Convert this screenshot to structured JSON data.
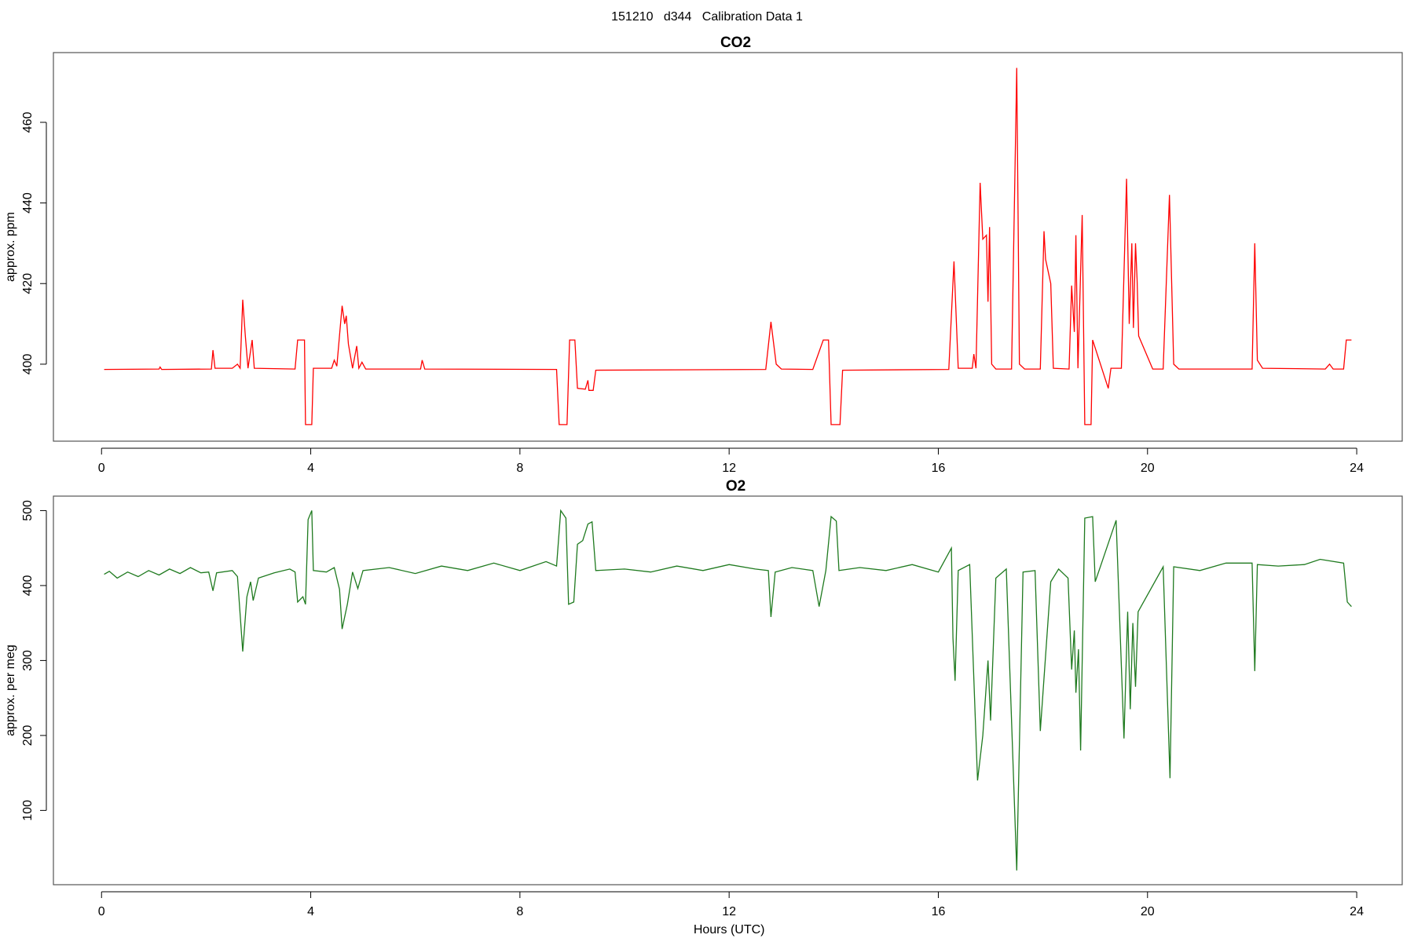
{
  "title": "151210   d344   Calibration Data 1",
  "chart_data": [
    {
      "type": "line",
      "title": "CO2",
      "ylabel": "approx. ppm",
      "color": "#ff0000",
      "xlim": [
        -0.92,
        24.87
      ],
      "ylim": [
        380.9,
        477.3
      ],
      "xticks": [
        0,
        4,
        8,
        12,
        16,
        20,
        24
      ],
      "yticks": [
        400,
        420,
        440,
        460
      ],
      "x": [
        0.05,
        1.1,
        1.12,
        1.15,
        2.1,
        2.13,
        2.17,
        2.5,
        2.6,
        2.65,
        2.7,
        2.75,
        2.8,
        2.88,
        2.92,
        3.7,
        3.75,
        3.88,
        3.9,
        4.02,
        4.05,
        4.4,
        4.45,
        4.5,
        4.6,
        4.65,
        4.68,
        4.72,
        4.8,
        4.88,
        4.92,
        4.98,
        5.05,
        6.1,
        6.13,
        6.18,
        8.7,
        8.75,
        8.9,
        8.95,
        9.05,
        9.1,
        9.25,
        9.3,
        9.32,
        9.4,
        9.45,
        12.7,
        12.8,
        12.9,
        13.0,
        13.6,
        13.8,
        13.9,
        13.95,
        14.12,
        14.17,
        16.2,
        16.3,
        16.38,
        16.65,
        16.68,
        16.72,
        16.8,
        16.85,
        16.92,
        16.95,
        16.98,
        17.02,
        17.1,
        17.4,
        17.5,
        17.55,
        17.65,
        17.95,
        18.02,
        18.05,
        18.15,
        18.2,
        18.5,
        18.55,
        18.6,
        18.63,
        18.67,
        18.75,
        18.8,
        18.92,
        18.95,
        19.25,
        19.3,
        19.5,
        19.6,
        19.65,
        19.7,
        19.73,
        19.77,
        19.8,
        19.83,
        20.1,
        20.3,
        20.42,
        20.5,
        20.6,
        22.0,
        22.05,
        22.1,
        22.2,
        23.4,
        23.48,
        23.55,
        23.75,
        23.8,
        23.9
      ],
      "values": [
        398.7,
        398.8,
        399.3,
        398.7,
        398.8,
        403.5,
        399,
        399,
        400,
        399,
        416,
        407,
        399,
        406,
        399,
        398.8,
        406,
        406,
        385,
        385,
        399,
        399,
        401,
        399.5,
        414.5,
        410,
        412,
        405,
        399,
        404.5,
        399,
        400.5,
        398.8,
        398.8,
        401,
        398.8,
        398.7,
        385,
        385,
        406,
        406,
        394,
        393.8,
        396,
        393.5,
        393.5,
        398.5,
        398.7,
        410.5,
        400,
        398.8,
        398.7,
        406,
        406,
        385,
        385,
        398.5,
        398.7,
        425.5,
        399,
        399,
        402.5,
        399,
        445,
        431,
        432,
        415.5,
        434,
        400,
        398.8,
        398.8,
        473.5,
        400,
        398.8,
        398.8,
        433,
        426,
        420,
        399,
        398.8,
        419.5,
        408,
        432,
        399,
        437,
        385,
        385,
        406,
        394,
        399,
        399,
        446,
        410,
        430,
        409,
        430,
        421,
        407,
        398.8,
        398.8,
        442,
        400,
        398.8,
        398.8,
        430,
        401,
        399,
        398.8,
        400,
        398.8,
        398.8,
        406,
        406
      ]
    },
    {
      "type": "line",
      "title": "O2",
      "ylabel": "approx. per meg",
      "xlabel": "Hours (UTC)",
      "color": "#1f7a1f",
      "xlim": [
        -0.92,
        24.87
      ],
      "ylim": [
        0.9,
        519.3
      ],
      "xticks": [
        0,
        4,
        8,
        12,
        16,
        20,
        24
      ],
      "yticks": [
        100,
        200,
        300,
        400,
        500
      ],
      "x": [
        0.05,
        0.15,
        0.3,
        0.5,
        0.7,
        0.9,
        1.1,
        1.3,
        1.5,
        1.7,
        1.9,
        2.05,
        2.13,
        2.2,
        2.5,
        2.6,
        2.7,
        2.78,
        2.85,
        2.9,
        3.0,
        3.3,
        3.6,
        3.7,
        3.75,
        3.85,
        3.9,
        3.95,
        4.02,
        4.05,
        4.3,
        4.45,
        4.55,
        4.6,
        4.7,
        4.8,
        4.9,
        5.0,
        5.5,
        6.0,
        6.5,
        7.0,
        7.5,
        8.0,
        8.5,
        8.7,
        8.78,
        8.88,
        8.93,
        9.03,
        9.1,
        9.2,
        9.3,
        9.38,
        9.45,
        10,
        10.5,
        11,
        11.5,
        12,
        12.5,
        12.75,
        12.8,
        12.88,
        13.2,
        13.6,
        13.72,
        13.85,
        13.95,
        14.05,
        14.1,
        14.5,
        15,
        15.5,
        16,
        16.25,
        16.28,
        16.32,
        16.38,
        16.6,
        16.75,
        16.85,
        16.95,
        17.0,
        17.1,
        17.3,
        17.5,
        17.62,
        17.85,
        17.95,
        18.15,
        18.3,
        18.48,
        18.55,
        18.6,
        18.63,
        18.68,
        18.72,
        18.8,
        18.95,
        19.0,
        19.4,
        19.55,
        19.62,
        19.67,
        19.72,
        19.77,
        19.82,
        20.3,
        20.43,
        20.5,
        21,
        21.5,
        22.0,
        22.05,
        22.1,
        22.5,
        23,
        23.3,
        23.75,
        23.82,
        23.9
      ],
      "values": [
        415,
        419,
        410,
        418,
        412,
        420,
        414,
        422,
        416,
        424,
        417,
        418,
        393,
        417,
        420,
        412,
        312,
        385,
        405,
        380,
        410,
        417,
        422,
        418,
        378,
        385,
        375,
        488,
        500,
        420,
        418,
        424,
        395,
        342,
        375,
        418,
        396,
        420,
        424,
        416,
        426,
        420,
        430,
        420,
        432,
        426,
        500,
        490,
        375,
        378,
        455,
        460,
        482,
        485,
        420,
        422,
        418,
        426,
        420,
        428,
        422,
        420,
        358,
        418,
        424,
        420,
        372,
        420,
        492,
        486,
        420,
        424,
        420,
        428,
        418,
        450,
        330,
        273,
        420,
        428,
        140,
        200,
        300,
        220,
        410,
        422,
        20,
        418,
        420,
        206,
        405,
        422,
        410,
        288,
        340,
        257,
        315,
        180,
        490,
        492,
        405,
        487,
        196,
        365,
        235,
        350,
        265,
        365,
        425,
        143,
        425,
        420,
        430,
        430,
        286,
        428,
        426,
        428,
        435,
        430,
        378,
        372
      ]
    }
  ]
}
